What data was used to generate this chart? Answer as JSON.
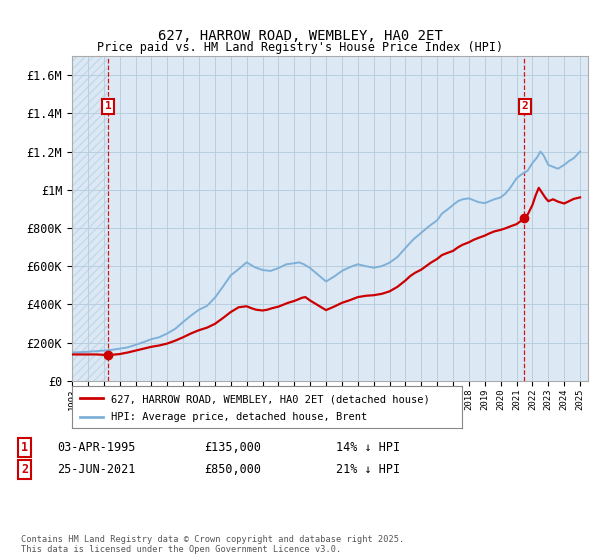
{
  "title": "627, HARROW ROAD, WEMBLEY, HA0 2ET",
  "subtitle": "Price paid vs. HM Land Registry's House Price Index (HPI)",
  "ylabel_ticks": [
    "£0",
    "£200K",
    "£400K",
    "£600K",
    "£800K",
    "£1M",
    "£1.2M",
    "£1.4M",
    "£1.6M"
  ],
  "ylim": [
    0,
    1700000
  ],
  "ytick_vals": [
    0,
    200000,
    400000,
    600000,
    800000,
    1000000,
    1200000,
    1400000,
    1600000
  ],
  "xlim_start": 1993,
  "xlim_end": 2025.5,
  "marker1_x": 1995.25,
  "marker1_y": 135000,
  "marker1_label": "1",
  "marker2_x": 2021.5,
  "marker2_y": 850000,
  "marker2_label": "2",
  "red_color": "#cc0000",
  "blue_color": "#7fb0d8",
  "plot_bg_color": "#dce9f5",
  "marker_box_color": "#cc0000",
  "legend_line1": "627, HARROW ROAD, WEMBLEY, HA0 2ET (detached house)",
  "legend_line2": "HPI: Average price, detached house, Brent",
  "annot1_date": "03-APR-1995",
  "annot1_price": "£135,000",
  "annot1_hpi": "14% ↓ HPI",
  "annot2_date": "25-JUN-2021",
  "annot2_price": "£850,000",
  "annot2_hpi": "21% ↓ HPI",
  "footer": "Contains HM Land Registry data © Crown copyright and database right 2025.\nThis data is licensed under the Open Government Licence v3.0.",
  "background_color": "#ffffff",
  "grid_color": "#b8cfe0",
  "hatch_color": "#c5d9e8"
}
